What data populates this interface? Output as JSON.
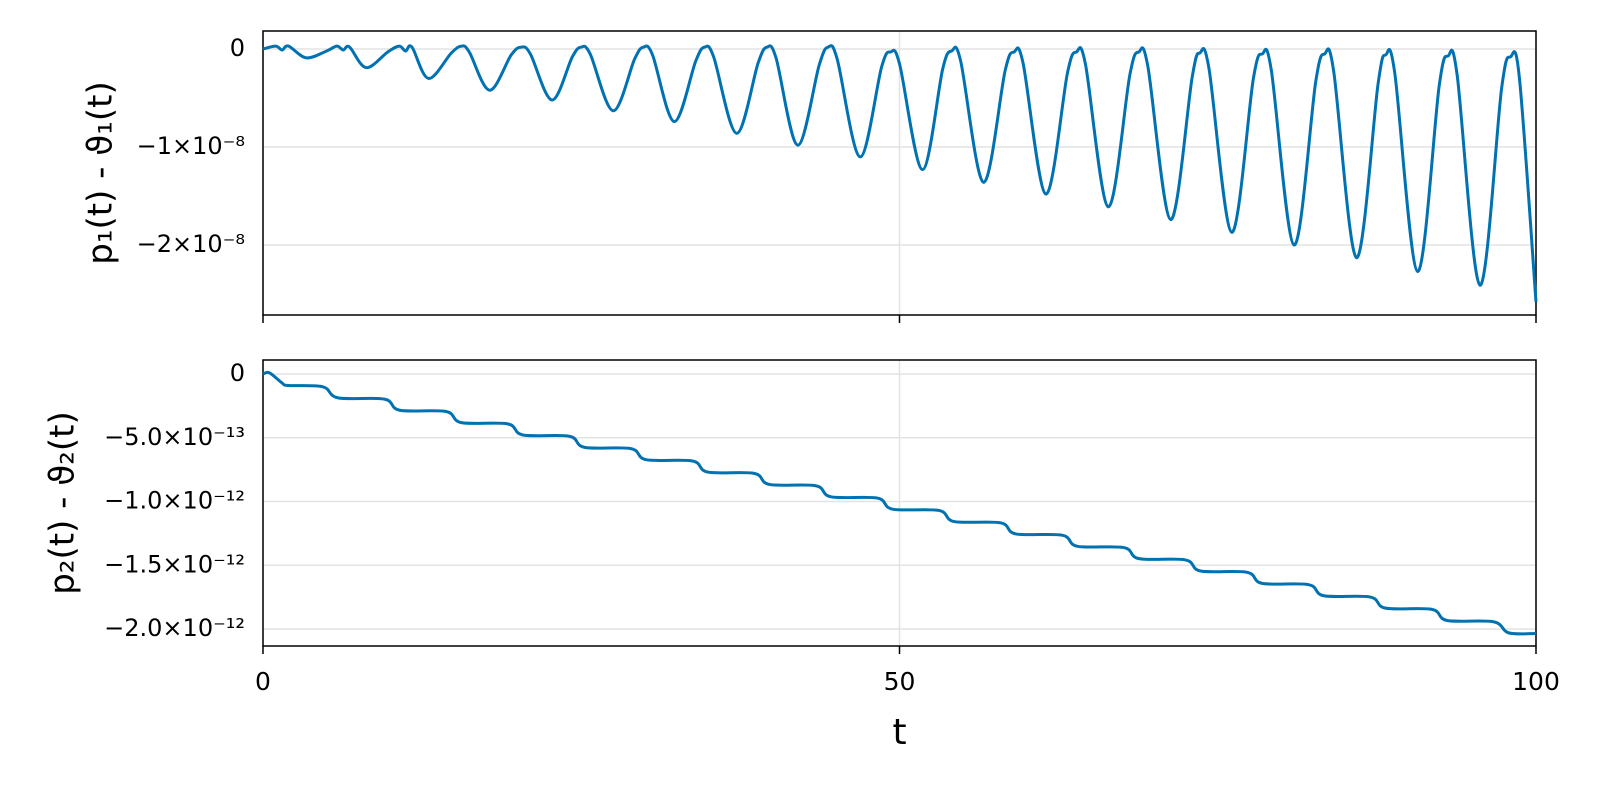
{
  "chart_data": [
    {
      "type": "line",
      "ylabel": "p₁(t) - ϑ₁(t)",
      "color": "#0072b2",
      "grid": true,
      "xlim": [
        0,
        100
      ],
      "xticks": [
        0,
        50,
        100
      ],
      "ylim": [
        -2.714e-08,
        1.84e-09
      ],
      "yticks": [
        0,
        {
          "value": -1e-08,
          "label": "−1×10⁻⁸"
        },
        {
          "value": -2e-08,
          "label": "−2×10⁻⁸"
        }
      ],
      "x": [
        0,
        1,
        1.5,
        2,
        3.4,
        5,
        5.8,
        6.3,
        6.8,
        8.1,
        9.8,
        10.7,
        11.2,
        11.7,
        13,
        14.8,
        15.6,
        16.2,
        17.8,
        19.5,
        20.3,
        21,
        22.7,
        24.3,
        25,
        25.7,
        27.5,
        29.2,
        29.9,
        30.6,
        32.3,
        34,
        34.7,
        35.4,
        37.2,
        38.9,
        39.6,
        40.3,
        42,
        43.7,
        44.4,
        45.1,
        46.9,
        48.6,
        49.3,
        50,
        51.8,
        53.4,
        54.1,
        54.8,
        56.6,
        58.3,
        59,
        59.7,
        61.5,
        63.2,
        63.9,
        64.6,
        66.4,
        68.1,
        68.8,
        69.5,
        71.3,
        73,
        73.6,
        74.3,
        76.1,
        77.8,
        78.5,
        79.2,
        81,
        82.7,
        83.4,
        84.1,
        85.9,
        87.6,
        88.2,
        88.9,
        90.7,
        92.4,
        93.1,
        93.8,
        95.6,
        97.3,
        98,
        98.7,
        100
      ],
      "values": [
        0,
        3e-10,
        -1e-10,
        3e-10,
        -9e-10,
        -2e-10,
        3e-10,
        -1e-10,
        2e-10,
        -1.9e-09,
        -3e-10,
        3e-10,
        -2e-10,
        2e-10,
        -3e-09,
        -4e-10,
        3e-10,
        -3e-10,
        -4.2e-09,
        -6e-10,
        2e-10,
        -5e-10,
        -5.2e-09,
        -8e-10,
        2e-10,
        -5e-10,
        -6.3e-09,
        -1e-09,
        2e-10,
        -6e-10,
        -7.4e-09,
        -1.2e-09,
        2e-10,
        -8e-10,
        -8.6e-09,
        -1.4e-09,
        2e-10,
        -9e-10,
        -9.8e-09,
        -1.6e-09,
        2e-10,
        -1e-09,
        -1.1e-08,
        -1.8e-09,
        -3e-10,
        -1.5e-09,
        -1.23e-08,
        -2e-09,
        -2e-10,
        -1.2e-09,
        -1.36e-08,
        -2.2e-09,
        -3e-10,
        -1.4e-09,
        -1.48e-08,
        -2.4e-09,
        -3e-10,
        -1.5e-09,
        -1.61e-08,
        -2.6e-09,
        -3e-10,
        -1.7e-09,
        -1.74e-08,
        -2.8e-09,
        -4e-10,
        -1.9e-09,
        -1.87e-08,
        -3e-09,
        -5e-10,
        -2.1e-09,
        -2e-08,
        -3.3e-09,
        -5e-10,
        -2.2e-09,
        -2.13e-08,
        -3.5e-09,
        -6e-10,
        -2.4e-09,
        -2.27e-08,
        -3.7e-09,
        -7e-10,
        -2.6e-09,
        -2.41e-08,
        -4e-09,
        -8e-10,
        -3e-09,
        -2.58e-08
      ]
    },
    {
      "type": "line",
      "ylabel": "p₂(t) - ϑ₂(t)",
      "xlabel": "t",
      "color": "#0072b2",
      "grid": true,
      "xlim": [
        0,
        100
      ],
      "xticks": [
        0,
        50,
        100
      ],
      "ylim": [
        -2.133e-12,
        1.1e-13
      ],
      "yticks": [
        0,
        {
          "value": -5e-13,
          "label": "−5.0×10⁻¹³"
        },
        {
          "value": -1e-12,
          "label": "−1.0×10⁻¹²"
        },
        {
          "value": -1.5e-12,
          "label": "−1.5×10⁻¹²"
        },
        {
          "value": -2e-12,
          "label": "−2.0×10⁻¹²"
        }
      ],
      "x": [
        0,
        0.5,
        1.5,
        2,
        4.7,
        5.9,
        9.54,
        10.74,
        14.38,
        15.58,
        19.22,
        20.42,
        24.06,
        25.26,
        28.9,
        30.1,
        33.74,
        34.94,
        38.58,
        39.78,
        43.42,
        44.62,
        48.26,
        49.46,
        53.1,
        54.3,
        57.94,
        59.14,
        62.78,
        63.98,
        67.62,
        68.82,
        72.46,
        73.66,
        77.3,
        78.5,
        82.14,
        83.34,
        86.98,
        88.18,
        91.82,
        93.02,
        96.66,
        97.86,
        100
      ],
      "values": [
        0,
        1e-14,
        -7e-14,
        -9e-14,
        -1e-13,
        -1.87e-13,
        -1.97e-13,
        -2.84e-13,
        -2.94e-13,
        -3.81e-13,
        -3.91e-13,
        -4.78e-13,
        -4.88e-13,
        -5.75e-13,
        -5.85e-13,
        -6.72e-13,
        -6.82e-13,
        -7.69e-13,
        -7.79e-13,
        -8.66e-13,
        -8.76e-13,
        -9.63e-13,
        -9.73e-13,
        -1.06e-12,
        -1.07e-12,
        -1.157e-12,
        -1.167e-12,
        -1.254e-12,
        -1.264e-12,
        -1.351e-12,
        -1.361e-12,
        -1.448e-12,
        -1.458e-12,
        -1.545e-12,
        -1.555e-12,
        -1.642e-12,
        -1.652e-12,
        -1.739e-12,
        -1.749e-12,
        -1.836e-12,
        -1.846e-12,
        -1.933e-12,
        -1.943e-12,
        -2.03e-12,
        -2.035e-12
      ]
    }
  ]
}
